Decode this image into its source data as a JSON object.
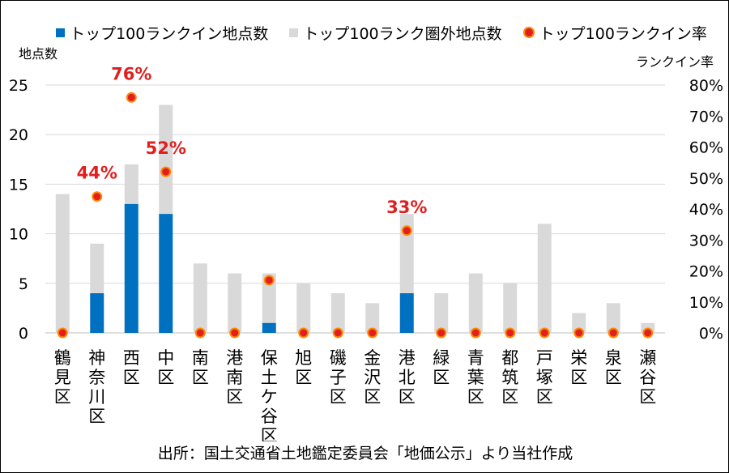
{
  "legend": {
    "in_count": "トップ100ランクイン地点数",
    "out_count": "トップ100ランク圏外地点数",
    "rate": "トップ100ランクイン率"
  },
  "axes": {
    "left_title": "地点数",
    "right_title": "ランクイン率"
  },
  "caption": "出所：国土交通省土地鑑定委員会「地価公示」より当社作成",
  "colors": {
    "in_bar": "#0070c0",
    "out_bar": "#d9d9d9",
    "rate_dot": "#e02020",
    "rate_dot_outline": "#ff8800",
    "rate_label": "#e02020",
    "grid": "#d9d9d9"
  },
  "chart_data": {
    "type": "bar",
    "stacked": true,
    "categories": [
      "鶴見区",
      "神奈川区",
      "西区",
      "中区",
      "南区",
      "港南区",
      "保土ケ谷区",
      "旭区",
      "磯子区",
      "金沢区",
      "港北区",
      "緑区",
      "青葉区",
      "都筑区",
      "戸塚区",
      "栄区",
      "泉区",
      "瀬谷区"
    ],
    "series": [
      {
        "name": "トップ100ランクイン地点数",
        "axis": "left",
        "values": [
          0,
          4,
          13,
          12,
          0,
          0,
          1,
          0,
          0,
          0,
          4,
          0,
          0,
          0,
          0,
          0,
          0,
          0
        ]
      },
      {
        "name": "トップ100ランク圏外地点数",
        "axis": "left",
        "values": [
          14,
          5,
          4,
          11,
          7,
          6,
          5,
          5,
          4,
          3,
          8,
          4,
          6,
          5,
          11,
          2,
          3,
          1
        ]
      },
      {
        "name": "トップ100ランクイン率",
        "axis": "right",
        "type": "scatter",
        "values": [
          0,
          44,
          76,
          52,
          0,
          0,
          17,
          0,
          0,
          0,
          33,
          0,
          0,
          0,
          0,
          0,
          0,
          0
        ]
      }
    ],
    "rate_labels": [
      {
        "category": "神奈川区",
        "text": "44%"
      },
      {
        "category": "西区",
        "text": "76%"
      },
      {
        "category": "中区",
        "text": "52%"
      },
      {
        "category": "港北区",
        "text": "33%"
      }
    ],
    "ylim_left": [
      0,
      25
    ],
    "yticks_left": [
      "0",
      "5",
      "10",
      "15",
      "20",
      "25"
    ],
    "ylim_right": [
      0,
      80
    ],
    "yticks_right": [
      "0%",
      "10%",
      "20%",
      "30%",
      "40%",
      "50%",
      "60%",
      "70%",
      "80%"
    ],
    "grid": true,
    "legend_position": "top"
  }
}
